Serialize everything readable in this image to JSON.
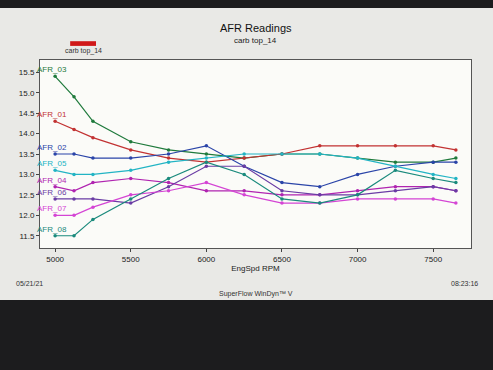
{
  "chart_data": {
    "type": "line",
    "title": "AFR Readings",
    "subtitle": "carb top_14",
    "x_label": "EngSpd RPM",
    "annotations": [
      "carb top_14",
      "05/21/21",
      "SuperFlow WinDyn™ V",
      "08:23:16"
    ],
    "x": [
      5000,
      5125,
      5250,
      5500,
      5750,
      6000,
      6250,
      6500,
      6750,
      7000,
      7250,
      7500,
      7650
    ],
    "series": [
      {
        "name": "AFR_03",
        "color": "#1f7a3c",
        "values": [
          15.4,
          14.9,
          14.3,
          13.8,
          13.6,
          13.5,
          13.4,
          13.5,
          13.5,
          13.4,
          13.3,
          13.3,
          13.4
        ]
      },
      {
        "name": "AFR_01",
        "color": "#c23232",
        "values": [
          14.3,
          14.1,
          13.9,
          13.6,
          13.4,
          13.3,
          13.4,
          13.5,
          13.7,
          13.7,
          13.7,
          13.7,
          13.6
        ]
      },
      {
        "name": "AFR_02",
        "color": "#2a44a8",
        "values": [
          13.5,
          13.5,
          13.4,
          13.4,
          13.5,
          13.7,
          13.2,
          12.8,
          12.7,
          13.0,
          13.2,
          13.3,
          13.3
        ]
      },
      {
        "name": "AFR_05",
        "color": "#22b4c4",
        "values": [
          13.1,
          13.0,
          13.0,
          13.1,
          13.3,
          13.4,
          13.5,
          13.5,
          13.5,
          13.4,
          13.2,
          13.0,
          12.9
        ]
      },
      {
        "name": "AFR_04",
        "color": "#b024b0",
        "values": [
          12.7,
          12.6,
          12.8,
          12.9,
          12.8,
          12.6,
          12.6,
          12.5,
          12.5,
          12.6,
          12.7,
          12.7,
          12.6
        ]
      },
      {
        "name": "AFR_06",
        "color": "#6a3ca4",
        "values": [
          12.4,
          12.4,
          12.4,
          12.3,
          12.7,
          13.2,
          13.2,
          12.6,
          12.5,
          12.5,
          12.6,
          12.7,
          12.6
        ]
      },
      {
        "name": "AFR_07",
        "color": "#d444d4",
        "values": [
          12.0,
          12.0,
          12.2,
          12.5,
          12.6,
          12.8,
          12.5,
          12.3,
          12.3,
          12.4,
          12.4,
          12.4,
          12.3
        ]
      },
      {
        "name": "AFR_08",
        "color": "#1a8a7c",
        "values": [
          11.5,
          11.5,
          11.9,
          12.4,
          12.9,
          13.3,
          13.0,
          12.4,
          12.3,
          12.5,
          13.1,
          12.9,
          12.8
        ]
      }
    ],
    "xlim": [
      4900,
      7750
    ],
    "xticks": [
      5000,
      5500,
      6000,
      6500,
      7000,
      7500
    ],
    "ylim": [
      11.2,
      15.8
    ],
    "yticks": [
      {
        "value": 11.5,
        "label": "11.5"
      },
      {
        "value": 12,
        "label": "12.0"
      },
      {
        "value": 12.5,
        "label": "12.5"
      },
      {
        "value": 13,
        "label": "13.0"
      },
      {
        "value": 13.5,
        "label": "13.5"
      },
      {
        "value": 14,
        "label": "14.0"
      },
      {
        "value": 14.5,
        "label": "14.5"
      },
      {
        "value": 15,
        "label": "15.0"
      },
      {
        "value": 15.5,
        "label": "15.5"
      }
    ],
    "grid": false,
    "marker": "circle",
    "line_style": "solid"
  }
}
